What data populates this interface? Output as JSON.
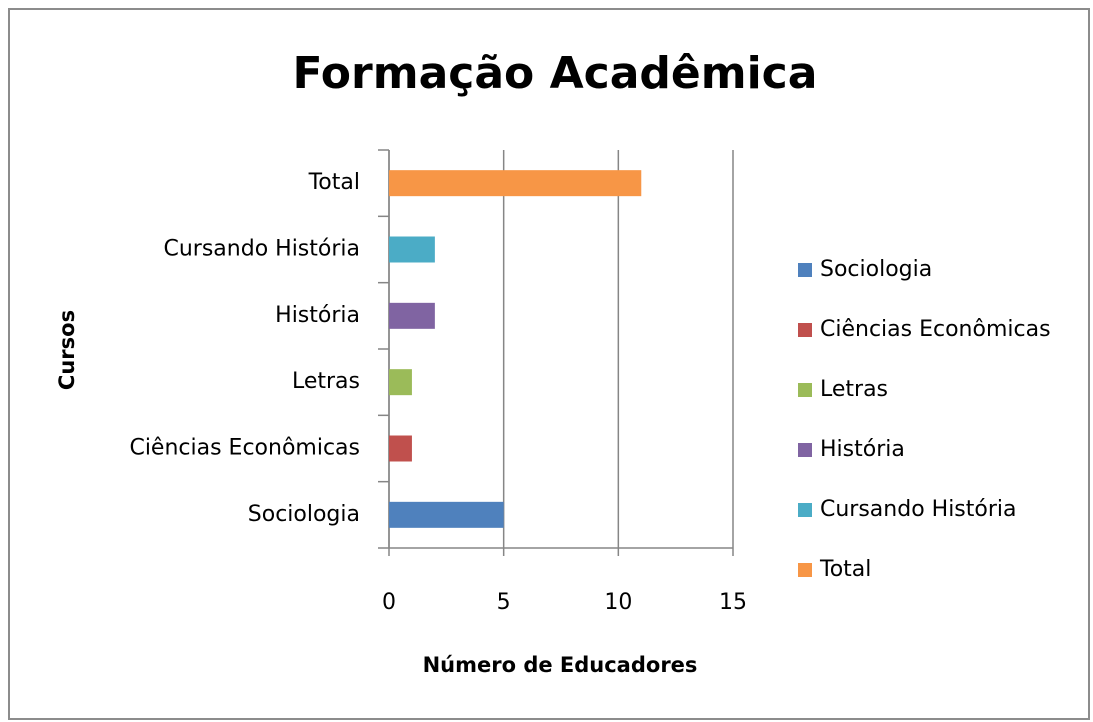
{
  "chart_data": {
    "type": "bar",
    "orientation": "horizontal",
    "title": "Formação Acadêmica",
    "x_label": "Número de Educadores",
    "y_label": "Cursos",
    "categories": [
      "Sociologia",
      "Ciências Econômicas",
      "Letras",
      "História",
      "Cursando História",
      "Total"
    ],
    "values": [
      5,
      1,
      1,
      2,
      2,
      11
    ],
    "colors": [
      "#4f81bd",
      "#c0504d",
      "#9bbb59",
      "#8064a2",
      "#4bacc6",
      "#f79646"
    ],
    "xlim": [
      0,
      15
    ],
    "xticks": [
      0,
      5,
      10,
      15
    ],
    "grid": true,
    "legend": "right"
  }
}
